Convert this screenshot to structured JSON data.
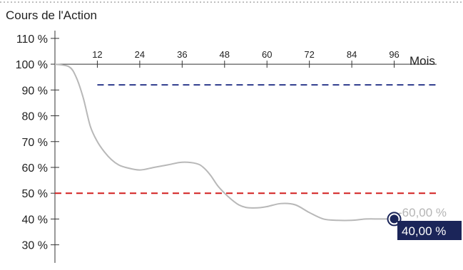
{
  "chart_data": {
    "type": "line",
    "title": "Cours de l'Action",
    "xlabel": "Mois",
    "ylabel": "",
    "xlim": [
      0,
      108
    ],
    "ylim": [
      23,
      113
    ],
    "x_ticks": [
      "12",
      "24",
      "36",
      "48",
      "60",
      "72",
      "84",
      "96"
    ],
    "y_ticks": [
      "110 %",
      "100 %",
      "90 %",
      "80 %",
      "70 %",
      "60 %",
      "50 %",
      "40 %",
      "30 %"
    ],
    "series": [
      {
        "x": [
          0,
          4,
          6,
          8,
          10,
          12,
          14,
          16,
          18,
          20,
          24,
          28,
          32,
          36,
          40,
          42,
          44,
          46,
          48,
          50,
          52,
          54,
          56,
          58,
          60,
          64,
          68,
          72,
          76,
          80,
          84,
          88,
          92,
          96
        ],
        "y": [
          100,
          99,
          95,
          87,
          76,
          70,
          66,
          63,
          61,
          60,
          59,
          60,
          61,
          62,
          61.5,
          60,
          57,
          53,
          50,
          47.5,
          45.5,
          44.5,
          44.3,
          44.4,
          44.8,
          46,
          45.5,
          42.5,
          40,
          39.5,
          39.5,
          40,
          40,
          40
        ]
      }
    ],
    "reference_lines": [
      {
        "y": 92,
        "color": "#2d3a8c",
        "style": "dashed"
      },
      {
        "y": 50,
        "color": "#d21f1f",
        "style": "dashed"
      }
    ],
    "annotations": {
      "change_label": "-60,00 %",
      "final_label": "40,00 %",
      "final_point": {
        "x": 96,
        "y": 40
      }
    },
    "colors": {
      "line": "#b8b8b8",
      "marker": "#1b2559",
      "final_box": "#1b2559",
      "top_border": "#bfbfbf",
      "axis": "#333333"
    }
  }
}
